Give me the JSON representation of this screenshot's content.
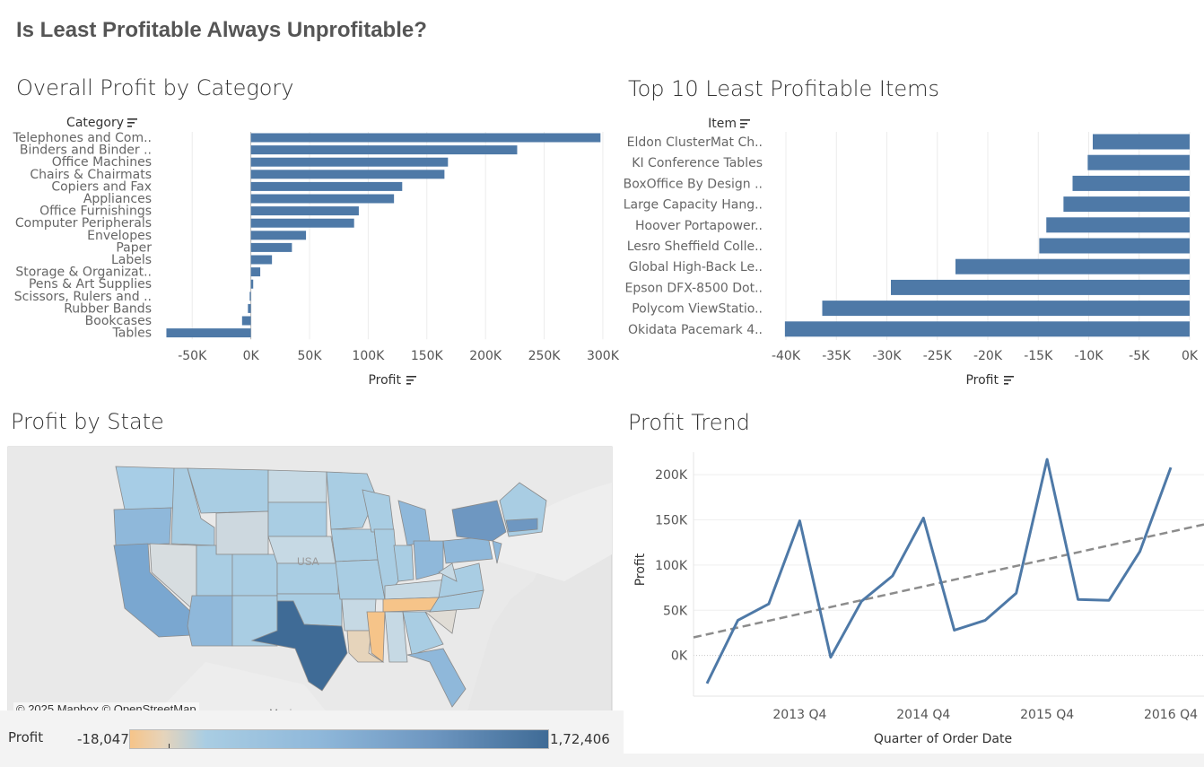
{
  "dashboard": {
    "title": "Is Least Profitable Always Unprofitable?"
  },
  "sheet1": {
    "title": "Overall Profit by Category",
    "row_header": "Category",
    "axis_title": "Profit",
    "ticks": [
      "-50K",
      "0K",
      "50K",
      "100K",
      "150K",
      "200K",
      "250K",
      "300K"
    ]
  },
  "sheet2": {
    "title": "Top 10 Least Profitable Items",
    "row_header": "Item",
    "axis_title": "Profit",
    "ticks": [
      "-40K",
      "-35K",
      "-30K",
      "-25K",
      "-20K",
      "-15K",
      "-10K",
      "-5K",
      "0K"
    ]
  },
  "sheet3": {
    "title": "Profit by State",
    "attribution": "© 2025 Mapbox © OpenStreetMap",
    "country_label": "USA",
    "mexico_label": "Mexico"
  },
  "sheet4": {
    "title": "Profit Trend",
    "y_title": "Profit",
    "x_title": "Quarter of Order Date",
    "y_ticks": [
      "200K",
      "150K",
      "100K",
      "50K",
      "0K"
    ],
    "x_ticks": [
      "2013 Q4",
      "2014 Q4",
      "2015 Q4",
      "2016 Q4"
    ]
  },
  "legend": {
    "title": "Profit",
    "min": "-18,047",
    "max": "1,72,406"
  },
  "colors": {
    "bar": "#4e79a7",
    "trend": "#4e79a7",
    "trendline": "#8c8c8c",
    "negative": "#f6c489",
    "positive_dark": "#3f6b96"
  },
  "icons": {
    "sort": "sort-icon"
  },
  "chart_data": [
    {
      "type": "bar",
      "title": "Overall Profit by Category",
      "ylabel": "Category",
      "xlabel": "Profit",
      "xlim": [
        -80000,
        310000
      ],
      "categories": [
        "Telephones and Com..",
        "Binders and Binder ..",
        "Office Machines",
        "Chairs & Chairmats",
        "Copiers and Fax",
        "Appliances",
        "Office Furnishings",
        "Computer Peripherals",
        "Envelopes",
        "Paper",
        "Labels",
        "Storage & Organizat..",
        "Pens & Art Supplies",
        "Scissors, Rulers and ..",
        "Rubber Bands",
        "Bookcases",
        "Tables"
      ],
      "values": [
        298000,
        227000,
        168000,
        165000,
        129000,
        122000,
        92000,
        88000,
        47000,
        35000,
        18000,
        8000,
        2000,
        -1000,
        -2500,
        -7500,
        -72000
      ]
    },
    {
      "type": "bar",
      "title": "Top 10 Least Profitable Items",
      "ylabel": "Item",
      "xlabel": "Profit",
      "xlim": [
        -40000,
        0
      ],
      "categories": [
        "Eldon ClusterMat Ch..",
        "KI Conference Tables",
        "BoxOffice By Design ..",
        "Large Capacity Hang..",
        "Hoover Portapower..",
        "Lesro Sheffield Colle..",
        "Global High-Back Le..",
        "Epson DFX-8500 Dot..",
        "Polycom ViewStatio..",
        "Okidata Pacemark 4.."
      ],
      "values": [
        -9600,
        -10100,
        -11600,
        -12500,
        -14200,
        -14900,
        -23200,
        -29600,
        -36400,
        -40100
      ]
    },
    {
      "type": "line",
      "title": "Profit Trend",
      "xlabel": "Quarter of Order Date",
      "ylabel": "Profit",
      "x": [
        "2013 Q1",
        "2013 Q2",
        "2013 Q3",
        "2013 Q4",
        "2014 Q1",
        "2014 Q2",
        "2014 Q3",
        "2014 Q4",
        "2015 Q1",
        "2015 Q2",
        "2015 Q3",
        "2015 Q4",
        "2016 Q1",
        "2016 Q2",
        "2016 Q3",
        "2016 Q4"
      ],
      "series": [
        {
          "values": [
            -31000,
            39000,
            57000,
            149000,
            -2000,
            60000,
            88000,
            152000,
            28000,
            39000,
            69000,
            217000,
            62000,
            61000,
            115000,
            208000
          ]
        }
      ],
      "trendline": {
        "start": 20000,
        "end": 145000
      },
      "ylim": [
        -45000,
        225000
      ]
    }
  ]
}
